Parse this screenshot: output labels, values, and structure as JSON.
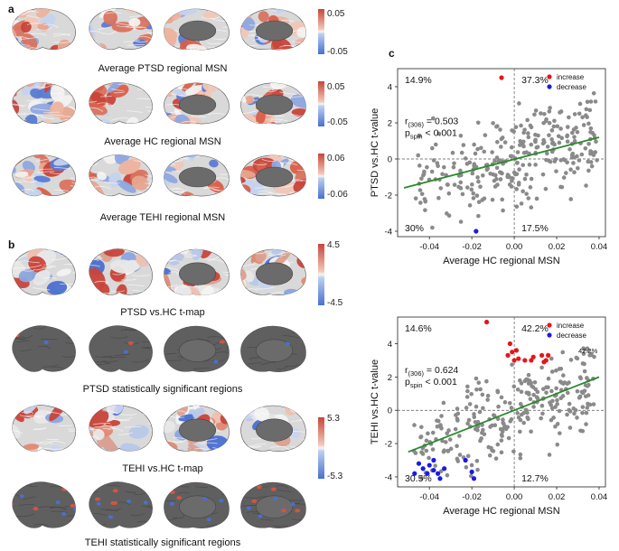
{
  "panels": {
    "a": "a",
    "b": "b",
    "c": "c"
  },
  "colors": {
    "red": "#c8453a",
    "blue": "#4a6fd1",
    "gray": "#8a8a8a",
    "green": "#2a8a2a",
    "brain_gray": "#6a6a6a"
  },
  "panel_a": {
    "rows": [
      {
        "label": "Average PTSD regional MSN",
        "cbar_max": "0.05",
        "cbar_min": "-0.05"
      },
      {
        "label": "Average HC regional MSN",
        "cbar_max": "0.05",
        "cbar_min": "-0.05"
      },
      {
        "label": "Average TEHI regional MSN",
        "cbar_max": "0.06",
        "cbar_min": "-0.06"
      }
    ]
  },
  "panel_b": {
    "rows": [
      {
        "label": "PTSD vs.HC t-map",
        "cbar_max": "4.5",
        "cbar_min": "-4.5"
      },
      {
        "label": "PTSD statistically significant regions"
      },
      {
        "label": "TEHI vs.HC t-map",
        "cbar_max": "5.3",
        "cbar_min": "-5.3"
      },
      {
        "label": "TEHI statistically significant regions"
      }
    ]
  },
  "chart_data": [
    {
      "type": "scatter",
      "title": "",
      "xlabel": "Average HC regional MSN",
      "ylabel": "PTSD vs.HC t-value",
      "xlim": [
        -0.055,
        0.043
      ],
      "ylim": [
        -4.3,
        5.0
      ],
      "xticks": [
        "-0.04",
        "-0.02",
        "0.00",
        "0.02",
        "0.04"
      ],
      "xtick_values": [
        -0.04,
        -0.02,
        0.0,
        0.02,
        0.04
      ],
      "yticks": [
        "4",
        "2",
        "0",
        "-2",
        "-4"
      ],
      "ytick_values": [
        4,
        2,
        0,
        -2,
        -4
      ],
      "quadrant_labels": {
        "top_left": "14.9%",
        "top_right": "37.3%",
        "bottom_left": "30%",
        "bottom_right": "17.5%"
      },
      "stat_r_prefix": "r",
      "stat_r_sub": "(306)",
      "stat_r_value": " = 0.503",
      "stat_p_prefix": "p",
      "stat_p_sub": "spin",
      "stat_p_value": " < 0.001",
      "legend": [
        {
          "label": "increase",
          "color": "#e8141a"
        },
        {
          "label": "decrease",
          "color": "#1a1ae8"
        }
      ],
      "fit_line": {
        "x": [
          -0.052,
          0.04
        ],
        "y": [
          -1.6,
          1.2
        ]
      },
      "increase": [
        [
          -0.006,
          4.5
        ]
      ],
      "decrease": [
        [
          -0.018,
          -4.0
        ]
      ],
      "gray_count": 300,
      "seed": 11
    },
    {
      "type": "scatter",
      "title": "",
      "xlabel": "Average HC regional MSN",
      "ylabel": "TEHI vs.HC t-value",
      "xlim": [
        -0.055,
        0.043
      ],
      "ylim": [
        -4.6,
        5.6
      ],
      "xticks": [
        "-0.04",
        "-0.02",
        "0.00",
        "0.02",
        "0.04"
      ],
      "xtick_values": [
        -0.04,
        -0.02,
        0.0,
        0.02,
        0.04
      ],
      "yticks": [
        "4",
        "2",
        "0",
        "-2",
        "-4"
      ],
      "ytick_values": [
        4,
        2,
        0,
        -2,
        -4
      ],
      "quadrant_labels": {
        "top_left": "14.6%",
        "top_right": "42.2%",
        "bottom_left": "30.5%",
        "bottom_right": "12.7%",
        "extra": "42.2%"
      },
      "stat_r_prefix": "r",
      "stat_r_sub": "(306)",
      "stat_r_value": " = 0.624",
      "stat_p_prefix": "p",
      "stat_p_sub": "spin",
      "stat_p_value": " < 0.001",
      "legend": [
        {
          "label": "increase",
          "color": "#e8141a"
        },
        {
          "label": "decrease",
          "color": "#1a1ae8"
        }
      ],
      "fit_line": {
        "x": [
          -0.05,
          0.04
        ],
        "y": [
          -2.5,
          2.0
        ]
      },
      "increase": [
        [
          -0.013,
          5.3
        ],
        [
          -0.002,
          4.0
        ],
        [
          -0.001,
          3.5
        ],
        [
          0.002,
          3.1
        ],
        [
          0.001,
          3.6
        ],
        [
          0.005,
          3.0
        ],
        [
          0.009,
          3.2
        ],
        [
          0.013,
          3.3
        ],
        [
          0.015,
          3.0
        ],
        [
          0.016,
          3.3
        ],
        [
          0.014,
          2.9
        ],
        [
          0.008,
          3.0
        ],
        [
          -0.003,
          3.3
        ],
        [
          0.0,
          3.0
        ]
      ],
      "decrease": [
        [
          -0.045,
          -3.2
        ],
        [
          -0.043,
          -3.5
        ],
        [
          -0.04,
          -3.3
        ],
        [
          -0.038,
          -3.0
        ],
        [
          -0.036,
          -3.8
        ],
        [
          -0.035,
          -4.1
        ],
        [
          -0.033,
          -3.5
        ],
        [
          -0.047,
          -3.8
        ],
        [
          -0.02,
          -3.7
        ],
        [
          -0.019,
          -4.1
        ],
        [
          -0.023,
          -3.0
        ],
        [
          -0.038,
          -3.6
        ],
        [
          -0.041,
          -3.8
        ]
      ],
      "gray_count": 280,
      "seed": 29
    }
  ]
}
